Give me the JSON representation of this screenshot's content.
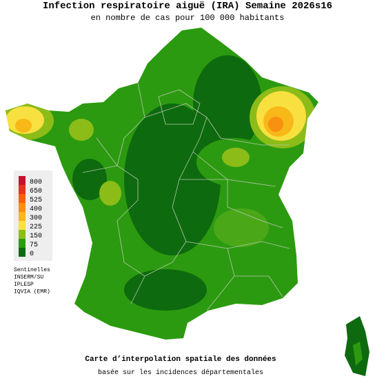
{
  "header": {
    "title": "Infection respiratoire aiguë (IRA) Semaine 2026s16",
    "subtitle": "en nombre de cas pour 100 000 habitants"
  },
  "legend": {
    "values": [
      800,
      650,
      525,
      400,
      300,
      225,
      150,
      75,
      0
    ],
    "colors": [
      "#c8102e",
      "#e83020",
      "#f86010",
      "#f89010",
      "#f8b818",
      "#f8e040",
      "#8cbc18",
      "#2c9a10",
      "#0e6a0e"
    ]
  },
  "sources": [
    "Sentinelles",
    "INSERM/SU",
    "IPLESP",
    "IQVIA (EMR)"
  ],
  "footer": {
    "line1": "Carte d’interpolation spatiale des données",
    "line2": "basée sur les incidences départementales"
  }
}
